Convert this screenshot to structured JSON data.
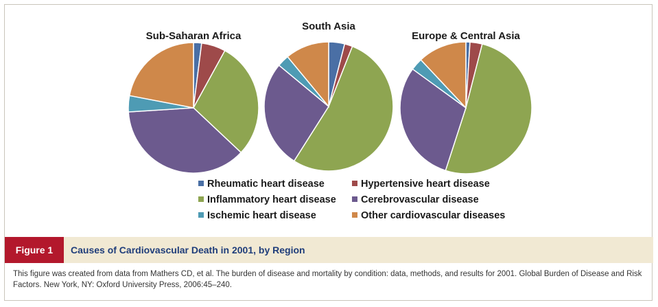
{
  "colors": {
    "rheumatic": "#4a6fa5",
    "hypertensive": "#9e4a4a",
    "inflammatory": "#8ea551",
    "cerebrovascular": "#6c5a8e",
    "ischemic": "#4e9bb4",
    "other": "#cf884a",
    "figure_label_bg": "#b3182c",
    "caption_bg": "#f1e9d3",
    "caption_title": "#1f3d7a"
  },
  "legend": [
    {
      "key": "rheumatic",
      "label": "Rheumatic heart disease"
    },
    {
      "key": "hypertensive",
      "label": "Hypertensive heart disease"
    },
    {
      "key": "inflammatory",
      "label": "Inflammatory heart disease"
    },
    {
      "key": "cerebrovascular",
      "label": "Cerebrovascular disease"
    },
    {
      "key": "ischemic",
      "label": "Ischemic heart disease"
    },
    {
      "key": "other",
      "label": "Other cardiovascular diseases"
    }
  ],
  "chart_data": [
    {
      "type": "pie",
      "title": "Sub-Saharan Africa",
      "categories": [
        "Rheumatic heart disease",
        "Hypertensive heart disease",
        "Inflammatory heart disease",
        "Cerebrovascular disease",
        "Ischemic heart disease",
        "Other cardiovascular diseases"
      ],
      "values": [
        2,
        6,
        29,
        37,
        4,
        22
      ]
    },
    {
      "type": "pie",
      "title": "South Asia",
      "categories": [
        "Rheumatic heart disease",
        "Hypertensive heart disease",
        "Inflammatory heart disease",
        "Cerebrovascular disease",
        "Ischemic heart disease",
        "Other cardiovascular diseases"
      ],
      "values": [
        4,
        2,
        53,
        27,
        3,
        11
      ]
    },
    {
      "type": "pie",
      "title": "Europe & Central Asia",
      "categories": [
        "Rheumatic heart disease",
        "Hypertensive heart disease",
        "Inflammatory heart disease",
        "Cerebrovascular disease",
        "Ischemic heart disease",
        "Other cardiovascular diseases"
      ],
      "values": [
        1,
        3,
        51,
        30,
        3,
        12
      ]
    }
  ],
  "caption": {
    "figure_label": "Figure 1",
    "title": "Causes of Cardiovascular Death in 2001, by Region",
    "note": "This figure was created from data from Mathers CD, et al. The burden of disease and mortality by condition: data, methods, and results for 2001. Global Burden of Disease and Risk Factors. New York, NY: Oxford University Press, 2006:45–240."
  }
}
